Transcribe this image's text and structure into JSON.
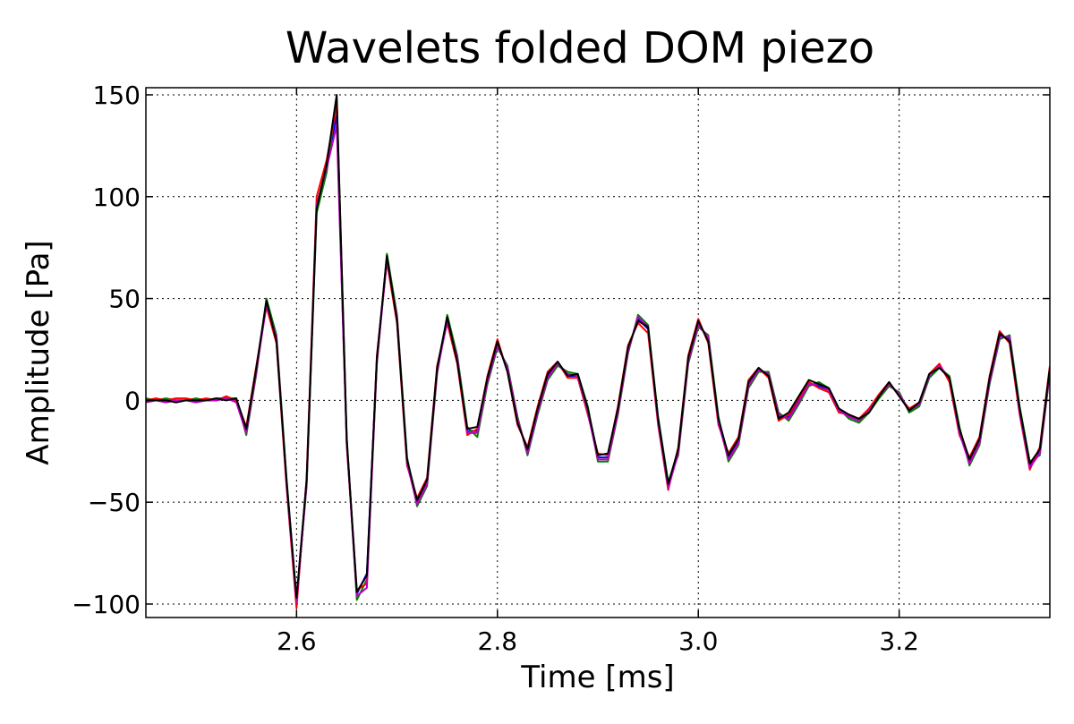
{
  "chart_data": {
    "type": "line",
    "title": "Wavelets folded DOM piezo",
    "x_label": "Time [ms]",
    "y_label": "Amplitude [Pa]",
    "xlim": [
      2.45,
      3.35
    ],
    "ylim": [
      -106.6,
      153.5
    ],
    "xticks": [
      2.6,
      2.8,
      {
        "value": 3,
        "label": "3.0"
      },
      3.2
    ],
    "yticks": [
      {
        "value": -100,
        "label": "−100"
      },
      {
        "value": -50,
        "label": "−50"
      },
      0,
      50,
      100,
      150
    ],
    "grid": true,
    "x": [
      2.45,
      2.46,
      2.47,
      2.48,
      2.49,
      2.5,
      2.51,
      2.52,
      2.53,
      2.54,
      2.55,
      2.56,
      2.57,
      2.58,
      2.59,
      2.6,
      2.61,
      2.62,
      2.63,
      2.64,
      2.65,
      2.66,
      2.67,
      2.68,
      2.69,
      2.7,
      2.71,
      2.72,
      2.73,
      2.74,
      2.75,
      2.76,
      2.77,
      2.78,
      2.79,
      2.8,
      2.81,
      2.82,
      2.83,
      2.84,
      2.85,
      2.86,
      2.87,
      2.88,
      2.89,
      2.9,
      2.91,
      2.92,
      2.93,
      2.94,
      2.95,
      2.96,
      2.97,
      2.98,
      2.99,
      3.0,
      3.01,
      3.02,
      3.03,
      3.04,
      3.05,
      3.06,
      3.07,
      3.08,
      3.09,
      3.1,
      3.11,
      3.12,
      3.13,
      3.14,
      3.15,
      3.16,
      3.17,
      3.18,
      3.19,
      3.2,
      3.21,
      3.22,
      3.23,
      3.24,
      3.25,
      3.26,
      3.27,
      3.28,
      3.29,
      3.3,
      3.31,
      3.32,
      3.33,
      3.34,
      3.35
    ],
    "series": [
      {
        "color": "#0000ff",
        "values": [
          0,
          0,
          0,
          0,
          0,
          0,
          0,
          0,
          1,
          0,
          -15,
          15,
          48,
          30,
          -40,
          -100,
          -40,
          95,
          115,
          140,
          -20,
          -95,
          -85,
          20,
          70,
          40,
          -30,
          -50,
          -40,
          15,
          40,
          20,
          -15,
          -15,
          10,
          28,
          15,
          -10,
          -25,
          -5,
          12,
          18,
          12,
          12,
          -5,
          -28,
          -28,
          -5,
          25,
          40,
          35,
          -10,
          -42,
          -25,
          20,
          38,
          30,
          -10,
          -28,
          -20,
          8,
          15,
          12,
          -8,
          -8,
          0,
          8,
          7,
          5,
          -5,
          -8,
          -10,
          -5,
          2,
          8,
          3,
          -5,
          -2,
          12,
          17,
          10,
          -15,
          -30,
          -20,
          10,
          32,
          30,
          -5,
          -32,
          -25,
          15
        ]
      },
      {
        "color": "#008000",
        "values": [
          1,
          0,
          1,
          0,
          0,
          1,
          0,
          1,
          1,
          1,
          -17,
          13,
          50,
          32,
          -38,
          -98,
          -42,
          92,
          112,
          148,
          -18,
          -98,
          -88,
          18,
          72,
          42,
          -28,
          -52,
          -42,
          13,
          42,
          22,
          -13,
          -18,
          8,
          26,
          17,
          -8,
          -27,
          -7,
          10,
          17,
          14,
          13,
          -3,
          -30,
          -30,
          -7,
          23,
          42,
          37,
          -8,
          -40,
          -27,
          18,
          36,
          32,
          -8,
          -30,
          -22,
          6,
          14,
          14,
          -6,
          -10,
          -2,
          7,
          9,
          6,
          -4,
          -9,
          -11,
          -6,
          1,
          7,
          4,
          -6,
          -3,
          11,
          16,
          12,
          -13,
          -32,
          -22,
          8,
          30,
          32,
          -3,
          -30,
          -27,
          13
        ]
      },
      {
        "color": "#ff0000",
        "values": [
          0,
          1,
          0,
          1,
          1,
          0,
          1,
          0,
          2,
          0,
          -13,
          17,
          46,
          28,
          -42,
          -102,
          -38,
          100,
          118,
          145,
          -22,
          -93,
          -90,
          22,
          68,
          38,
          -32,
          -48,
          -38,
          17,
          38,
          18,
          -17,
          -14,
          12,
          30,
          14,
          -12,
          -23,
          -3,
          14,
          19,
          11,
          11,
          -7,
          -26,
          -27,
          -3,
          27,
          38,
          33,
          -12,
          -44,
          -23,
          22,
          40,
          28,
          -12,
          -26,
          -18,
          10,
          16,
          11,
          -10,
          -7,
          1,
          9,
          6,
          4,
          -6,
          -7,
          -9,
          -4,
          3,
          9,
          2,
          -4,
          -1,
          13,
          18,
          9,
          -17,
          -28,
          -18,
          12,
          34,
          28,
          -7,
          -34,
          -23,
          17
        ]
      },
      {
        "color": "#bf00bf",
        "values": [
          -1,
          0,
          -1,
          0,
          0,
          -1,
          0,
          0,
          1,
          -1,
          -16,
          14,
          47,
          31,
          -41,
          -99,
          -41,
          96,
          114,
          135,
          -21,
          -96,
          -92,
          19,
          69,
          41,
          -31,
          -51,
          -41,
          14,
          39,
          21,
          -16,
          -16,
          9,
          27,
          16,
          -9,
          -26,
          -6,
          11,
          18,
          13,
          12,
          -6,
          -29,
          -29,
          -6,
          24,
          41,
          36,
          -11,
          -43,
          -26,
          19,
          37,
          31,
          -11,
          -29,
          -21,
          7,
          15,
          13,
          -7,
          -9,
          -1,
          8,
          8,
          5,
          -5,
          -8,
          -10,
          -5,
          2,
          8,
          3,
          -5,
          -2,
          12,
          17,
          11,
          -16,
          -31,
          -21,
          9,
          31,
          31,
          -6,
          -33,
          -26,
          14
        ]
      },
      {
        "color": "#000000",
        "values": [
          0,
          0,
          0,
          -1,
          0,
          0,
          0,
          1,
          0,
          1,
          -14,
          16,
          49,
          29,
          -39,
          -97,
          -39,
          94,
          116,
          150,
          -19,
          -94,
          -86,
          21,
          71,
          39,
          -29,
          -49,
          -39,
          16,
          41,
          19,
          -14,
          -13,
          11,
          29,
          14,
          -11,
          -24,
          -4,
          13,
          19,
          12,
          13,
          -4,
          -27,
          -26,
          -4,
          26,
          39,
          36,
          -9,
          -41,
          -24,
          21,
          39,
          29,
          -9,
          -27,
          -19,
          9,
          16,
          12,
          -9,
          -6,
          2,
          10,
          8,
          6,
          -4,
          -7,
          -9,
          -6,
          2,
          9,
          2,
          -5,
          -1,
          13,
          16,
          11,
          -14,
          -29,
          -19,
          11,
          33,
          29,
          -4,
          -31,
          -24,
          16
        ]
      }
    ]
  }
}
